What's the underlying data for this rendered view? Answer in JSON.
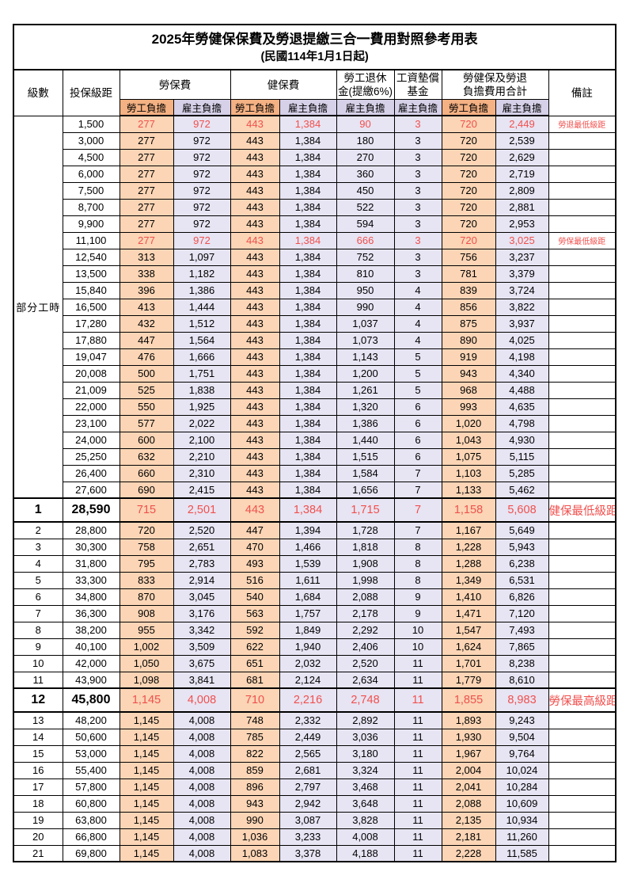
{
  "title": "2025年勞健保保費及勞退提繳三合一費用對照參考用表",
  "subtitle": "(民國114年1月1日起)",
  "header": {
    "level": "級數",
    "bracket": "投保級距",
    "labor_insurance": "勞保費",
    "health_insurance": "健保費",
    "pension_l1": "勞工退休",
    "pension_l2": "金(提繳6%)",
    "wage_fund_l1": "工資墊償",
    "wage_fund_l2": "基金",
    "total_l1": "勞健保及勞退",
    "total_l2": "負擔費用合計",
    "remark": "備註",
    "employee_share": "勞工負擔",
    "employer_share": "雇主負擔"
  },
  "part_time_label": "部分工時",
  "part_time_rowspan": 23,
  "colors": {
    "employee_header": "#f4b183",
    "employee_cell": "#fbd5b5",
    "employer_header": "#d6d0e8",
    "employer_cell": "#e7e4f3",
    "highlight_red": "#f0504d",
    "border": "#000000"
  },
  "table": {
    "value_columns": [
      "勞保費-勞工負擔",
      "勞保費-雇主負擔",
      "健保費-勞工負擔",
      "健保費-雇主負擔",
      "勞工退休金-雇主負擔",
      "工資墊償基金-雇主負擔",
      "合計-勞工負擔",
      "合計-雇主負擔"
    ],
    "rows": [
      {
        "lv": "",
        "br": "1,500",
        "c": [
          "277",
          "972",
          "443",
          "1,384",
          "90",
          "3",
          "720",
          "2,449"
        ],
        "rm": "勞退最低級距",
        "f": "hl"
      },
      {
        "lv": "",
        "br": "3,000",
        "c": [
          "277",
          "972",
          "443",
          "1,384",
          "180",
          "3",
          "720",
          "2,539"
        ],
        "rm": "",
        "f": ""
      },
      {
        "lv": "",
        "br": "4,500",
        "c": [
          "277",
          "972",
          "443",
          "1,384",
          "270",
          "3",
          "720",
          "2,629"
        ],
        "rm": "",
        "f": ""
      },
      {
        "lv": "",
        "br": "6,000",
        "c": [
          "277",
          "972",
          "443",
          "1,384",
          "360",
          "3",
          "720",
          "2,719"
        ],
        "rm": "",
        "f": ""
      },
      {
        "lv": "",
        "br": "7,500",
        "c": [
          "277",
          "972",
          "443",
          "1,384",
          "450",
          "3",
          "720",
          "2,809"
        ],
        "rm": "",
        "f": ""
      },
      {
        "lv": "",
        "br": "8,700",
        "c": [
          "277",
          "972",
          "443",
          "1,384",
          "522",
          "3",
          "720",
          "2,881"
        ],
        "rm": "",
        "f": ""
      },
      {
        "lv": "",
        "br": "9,900",
        "c": [
          "277",
          "972",
          "443",
          "1,384",
          "594",
          "3",
          "720",
          "2,953"
        ],
        "rm": "",
        "f": ""
      },
      {
        "lv": "",
        "br": "11,100",
        "c": [
          "277",
          "972",
          "443",
          "1,384",
          "666",
          "3",
          "720",
          "3,025"
        ],
        "rm": "勞保最低級距",
        "f": "hl"
      },
      {
        "lv": "",
        "br": "12,540",
        "c": [
          "313",
          "1,097",
          "443",
          "1,384",
          "752",
          "3",
          "756",
          "3,237"
        ],
        "rm": "",
        "f": ""
      },
      {
        "lv": "",
        "br": "13,500",
        "c": [
          "338",
          "1,182",
          "443",
          "1,384",
          "810",
          "3",
          "781",
          "3,379"
        ],
        "rm": "",
        "f": ""
      },
      {
        "lv": "",
        "br": "15,840",
        "c": [
          "396",
          "1,386",
          "443",
          "1,384",
          "950",
          "4",
          "839",
          "3,724"
        ],
        "rm": "",
        "f": ""
      },
      {
        "lv": "",
        "br": "16,500",
        "c": [
          "413",
          "1,444",
          "443",
          "1,384",
          "990",
          "4",
          "856",
          "3,822"
        ],
        "rm": "",
        "f": ""
      },
      {
        "lv": "",
        "br": "17,280",
        "c": [
          "432",
          "1,512",
          "443",
          "1,384",
          "1,037",
          "4",
          "875",
          "3,937"
        ],
        "rm": "",
        "f": ""
      },
      {
        "lv": "",
        "br": "17,880",
        "c": [
          "447",
          "1,564",
          "443",
          "1,384",
          "1,073",
          "4",
          "890",
          "4,025"
        ],
        "rm": "",
        "f": ""
      },
      {
        "lv": "",
        "br": "19,047",
        "c": [
          "476",
          "1,666",
          "443",
          "1,384",
          "1,143",
          "5",
          "919",
          "4,198"
        ],
        "rm": "",
        "f": ""
      },
      {
        "lv": "",
        "br": "20,008",
        "c": [
          "500",
          "1,751",
          "443",
          "1,384",
          "1,200",
          "5",
          "943",
          "4,340"
        ],
        "rm": "",
        "f": ""
      },
      {
        "lv": "",
        "br": "21,009",
        "c": [
          "525",
          "1,838",
          "443",
          "1,384",
          "1,261",
          "5",
          "968",
          "4,488"
        ],
        "rm": "",
        "f": ""
      },
      {
        "lv": "",
        "br": "22,000",
        "c": [
          "550",
          "1,925",
          "443",
          "1,384",
          "1,320",
          "6",
          "993",
          "4,635"
        ],
        "rm": "",
        "f": ""
      },
      {
        "lv": "",
        "br": "23,100",
        "c": [
          "577",
          "2,022",
          "443",
          "1,384",
          "1,386",
          "6",
          "1,020",
          "4,798"
        ],
        "rm": "",
        "f": ""
      },
      {
        "lv": "",
        "br": "24,000",
        "c": [
          "600",
          "2,100",
          "443",
          "1,384",
          "1,440",
          "6",
          "1,043",
          "4,930"
        ],
        "rm": "",
        "f": ""
      },
      {
        "lv": "",
        "br": "25,250",
        "c": [
          "632",
          "2,210",
          "443",
          "1,384",
          "1,515",
          "6",
          "1,075",
          "5,115"
        ],
        "rm": "",
        "f": ""
      },
      {
        "lv": "",
        "br": "26,400",
        "c": [
          "660",
          "2,310",
          "443",
          "1,384",
          "1,584",
          "7",
          "1,103",
          "5,285"
        ],
        "rm": "",
        "f": ""
      },
      {
        "lv": "",
        "br": "27,600",
        "c": [
          "690",
          "2,415",
          "443",
          "1,384",
          "1,656",
          "7",
          "1,133",
          "5,462"
        ],
        "rm": "",
        "f": ""
      },
      {
        "lv": "1",
        "br": "28,590",
        "c": [
          "715",
          "2,501",
          "443",
          "1,384",
          "1,715",
          "7",
          "1,158",
          "5,608"
        ],
        "rm": "健保最低級距",
        "f": "hl big"
      },
      {
        "lv": "2",
        "br": "28,800",
        "c": [
          "720",
          "2,520",
          "447",
          "1,394",
          "1,728",
          "7",
          "1,167",
          "5,649"
        ],
        "rm": "",
        "f": ""
      },
      {
        "lv": "3",
        "br": "30,300",
        "c": [
          "758",
          "2,651",
          "470",
          "1,466",
          "1,818",
          "8",
          "1,228",
          "5,943"
        ],
        "rm": "",
        "f": ""
      },
      {
        "lv": "4",
        "br": "31,800",
        "c": [
          "795",
          "2,783",
          "493",
          "1,539",
          "1,908",
          "8",
          "1,288",
          "6,238"
        ],
        "rm": "",
        "f": ""
      },
      {
        "lv": "5",
        "br": "33,300",
        "c": [
          "833",
          "2,914",
          "516",
          "1,611",
          "1,998",
          "8",
          "1,349",
          "6,531"
        ],
        "rm": "",
        "f": ""
      },
      {
        "lv": "6",
        "br": "34,800",
        "c": [
          "870",
          "3,045",
          "540",
          "1,684",
          "2,088",
          "9",
          "1,410",
          "6,826"
        ],
        "rm": "",
        "f": ""
      },
      {
        "lv": "7",
        "br": "36,300",
        "c": [
          "908",
          "3,176",
          "563",
          "1,757",
          "2,178",
          "9",
          "1,471",
          "7,120"
        ],
        "rm": "",
        "f": ""
      },
      {
        "lv": "8",
        "br": "38,200",
        "c": [
          "955",
          "3,342",
          "592",
          "1,849",
          "2,292",
          "10",
          "1,547",
          "7,493"
        ],
        "rm": "",
        "f": ""
      },
      {
        "lv": "9",
        "br": "40,100",
        "c": [
          "1,002",
          "3,509",
          "622",
          "1,940",
          "2,406",
          "10",
          "1,624",
          "7,865"
        ],
        "rm": "",
        "f": ""
      },
      {
        "lv": "10",
        "br": "42,000",
        "c": [
          "1,050",
          "3,675",
          "651",
          "2,032",
          "2,520",
          "11",
          "1,701",
          "8,238"
        ],
        "rm": "",
        "f": ""
      },
      {
        "lv": "11",
        "br": "43,900",
        "c": [
          "1,098",
          "3,841",
          "681",
          "2,124",
          "2,634",
          "11",
          "1,779",
          "8,610"
        ],
        "rm": "",
        "f": ""
      },
      {
        "lv": "12",
        "br": "45,800",
        "c": [
          "1,145",
          "4,008",
          "710",
          "2,216",
          "2,748",
          "11",
          "1,855",
          "8,983"
        ],
        "rm": "勞保最高級距",
        "f": "hl big"
      },
      {
        "lv": "13",
        "br": "48,200",
        "c": [
          "1,145",
          "4,008",
          "748",
          "2,332",
          "2,892",
          "11",
          "1,893",
          "9,243"
        ],
        "rm": "",
        "f": ""
      },
      {
        "lv": "14",
        "br": "50,600",
        "c": [
          "1,145",
          "4,008",
          "785",
          "2,449",
          "3,036",
          "11",
          "1,930",
          "9,504"
        ],
        "rm": "",
        "f": ""
      },
      {
        "lv": "15",
        "br": "53,000",
        "c": [
          "1,145",
          "4,008",
          "822",
          "2,565",
          "3,180",
          "11",
          "1,967",
          "9,764"
        ],
        "rm": "",
        "f": ""
      },
      {
        "lv": "16",
        "br": "55,400",
        "c": [
          "1,145",
          "4,008",
          "859",
          "2,681",
          "3,324",
          "11",
          "2,004",
          "10,024"
        ],
        "rm": "",
        "f": ""
      },
      {
        "lv": "17",
        "br": "57,800",
        "c": [
          "1,145",
          "4,008",
          "896",
          "2,797",
          "3,468",
          "11",
          "2,041",
          "10,284"
        ],
        "rm": "",
        "f": ""
      },
      {
        "lv": "18",
        "br": "60,800",
        "c": [
          "1,145",
          "4,008",
          "943",
          "2,942",
          "3,648",
          "11",
          "2,088",
          "10,609"
        ],
        "rm": "",
        "f": ""
      },
      {
        "lv": "19",
        "br": "63,800",
        "c": [
          "1,145",
          "4,008",
          "990",
          "3,087",
          "3,828",
          "11",
          "2,135",
          "10,934"
        ],
        "rm": "",
        "f": ""
      },
      {
        "lv": "20",
        "br": "66,800",
        "c": [
          "1,145",
          "4,008",
          "1,036",
          "3,233",
          "4,008",
          "11",
          "2,181",
          "11,260"
        ],
        "rm": "",
        "f": ""
      },
      {
        "lv": "21",
        "br": "69,800",
        "c": [
          "1,145",
          "4,008",
          "1,083",
          "3,378",
          "4,188",
          "11",
          "2,228",
          "11,585"
        ],
        "rm": "",
        "f": ""
      }
    ]
  }
}
